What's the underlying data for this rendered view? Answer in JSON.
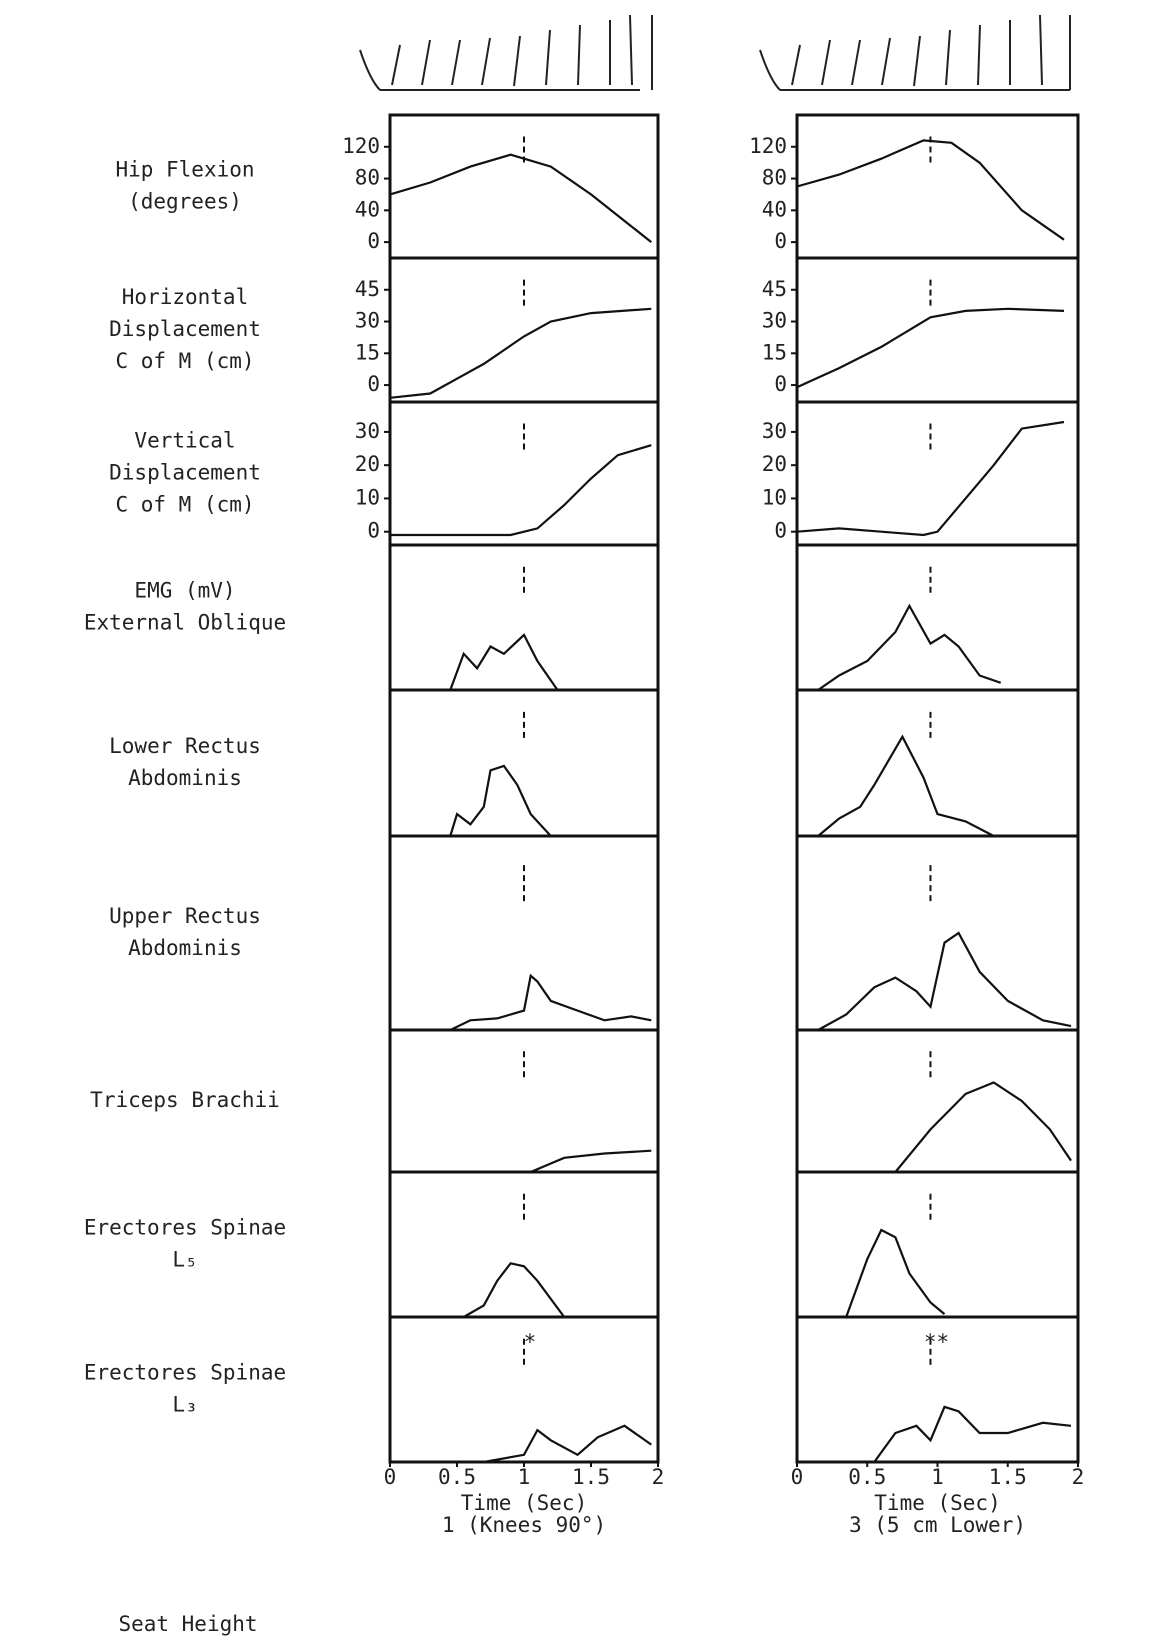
{
  "row_labels": [
    [
      "Hip Flexion",
      "(degrees)"
    ],
    [
      "Horizontal",
      "Displacement",
      "C of M (cm)"
    ],
    [
      "Vertical",
      "Displacement",
      "C of M (cm)"
    ],
    [
      "EMG (mV)",
      "External Oblique"
    ],
    [
      "Lower Rectus",
      "Abdominis"
    ],
    [
      "Upper Rectus",
      "Abdominis"
    ],
    [
      "Triceps Brachii"
    ],
    [
      "Erectores Spinae",
      "L₅"
    ],
    [
      "Erectores Spinae",
      "L₃"
    ]
  ],
  "seat_label": "Seat Height",
  "chart_data": [
    {
      "type": "line",
      "xlabel": "Time (Sec)",
      "caption": "1 (Knees 90°)",
      "xlim": [
        0,
        2
      ],
      "xticks": [
        0,
        0.5,
        1,
        1.5,
        2
      ],
      "event_x": 1,
      "panels": [
        {
          "ylim": [
            -20,
            160
          ],
          "yticks": [
            0,
            40,
            80,
            120
          ],
          "x": [
            0,
            0.3,
            0.6,
            0.9,
            1.2,
            1.5,
            1.8,
            1.95
          ],
          "values": [
            60,
            75,
            95,
            110,
            95,
            60,
            20,
            0
          ]
        },
        {
          "ylim": [
            -8,
            60
          ],
          "yticks": [
            0,
            15,
            30,
            45
          ],
          "x": [
            0,
            0.3,
            0.5,
            0.7,
            1.0,
            1.2,
            1.5,
            1.95
          ],
          "values": [
            -6,
            -4,
            3,
            10,
            23,
            30,
            34,
            36
          ]
        },
        {
          "ylim": [
            -4,
            39
          ],
          "yticks": [
            0,
            10,
            20,
            30
          ],
          "x": [
            0,
            0.5,
            0.9,
            1.1,
            1.3,
            1.5,
            1.7,
            1.95
          ],
          "values": [
            -1,
            -1,
            -1,
            1,
            8,
            16,
            23,
            26
          ]
        },
        {
          "ylim": [
            0,
            1
          ],
          "x": [
            0.45,
            0.55,
            0.65,
            0.75,
            0.85,
            1.0,
            1.1,
            1.25
          ],
          "values": [
            0,
            0.25,
            0.15,
            0.3,
            0.25,
            0.38,
            0.2,
            0
          ]
        },
        {
          "ylim": [
            0,
            1
          ],
          "x": [
            0.45,
            0.5,
            0.6,
            0.7,
            0.75,
            0.85,
            0.95,
            1.05,
            1.2
          ],
          "values": [
            0,
            0.15,
            0.08,
            0.2,
            0.45,
            0.48,
            0.35,
            0.15,
            0
          ]
        },
        {
          "ylim": [
            0,
            1
          ],
          "x": [
            0.45,
            0.6,
            0.8,
            1.0,
            1.05,
            1.1,
            1.2,
            1.4,
            1.6,
            1.8,
            1.95
          ],
          "values": [
            0,
            0.05,
            0.06,
            0.1,
            0.28,
            0.25,
            0.15,
            0.1,
            0.05,
            0.07,
            0.05
          ]
        },
        {
          "ylim": [
            0,
            1
          ],
          "x": [
            1.05,
            1.3,
            1.6,
            1.95
          ],
          "values": [
            0,
            0.1,
            0.13,
            0.15
          ]
        },
        {
          "ylim": [
            0,
            1
          ],
          "x": [
            0.55,
            0.7,
            0.8,
            0.9,
            1.0,
            1.1,
            1.3
          ],
          "values": [
            0,
            0.08,
            0.25,
            0.37,
            0.35,
            0.25,
            0
          ]
        },
        {
          "ylim": [
            0,
            1
          ],
          "annotation": "*",
          "x": [
            0.7,
            1.0,
            1.1,
            1.2,
            1.4,
            1.55,
            1.75,
            1.95
          ],
          "values": [
            0,
            0.05,
            0.22,
            0.15,
            0.05,
            0.17,
            0.25,
            0.12
          ]
        }
      ]
    },
    {
      "type": "line",
      "xlabel": "Time (Sec)",
      "caption": "3 (5 cm Lower)",
      "xlim": [
        0,
        2
      ],
      "xticks": [
        0,
        0.5,
        1,
        1.5,
        2
      ],
      "event_x": 0.95,
      "panels": [
        {
          "ylim": [
            -20,
            160
          ],
          "yticks": [
            0,
            40,
            80,
            120
          ],
          "x": [
            0,
            0.3,
            0.6,
            0.9,
            1.1,
            1.3,
            1.6,
            1.9
          ],
          "values": [
            70,
            85,
            105,
            128,
            125,
            100,
            40,
            3
          ]
        },
        {
          "ylim": [
            -8,
            60
          ],
          "yticks": [
            0,
            15,
            30,
            45
          ],
          "x": [
            0,
            0.3,
            0.6,
            0.95,
            1.2,
            1.5,
            1.9
          ],
          "values": [
            -1,
            8,
            18,
            32,
            35,
            36,
            35
          ]
        },
        {
          "ylim": [
            -4,
            39
          ],
          "yticks": [
            0,
            10,
            20,
            30
          ],
          "x": [
            0,
            0.3,
            0.6,
            0.9,
            1.0,
            1.2,
            1.4,
            1.6,
            1.9
          ],
          "values": [
            0,
            1,
            0,
            -1,
            0,
            10,
            20,
            31,
            33
          ]
        },
        {
          "ylim": [
            0,
            1
          ],
          "x": [
            0.15,
            0.3,
            0.5,
            0.7,
            0.8,
            0.95,
            1.05,
            1.15,
            1.3,
            1.45
          ],
          "values": [
            0,
            0.1,
            0.2,
            0.4,
            0.58,
            0.32,
            0.38,
            0.3,
            0.1,
            0.05
          ]
        },
        {
          "ylim": [
            0,
            1
          ],
          "x": [
            0.15,
            0.3,
            0.45,
            0.55,
            0.75,
            0.9,
            1.0,
            1.2,
            1.4
          ],
          "values": [
            0,
            0.12,
            0.2,
            0.35,
            0.68,
            0.4,
            0.15,
            0.1,
            0
          ]
        },
        {
          "ylim": [
            0,
            1
          ],
          "x": [
            0.15,
            0.35,
            0.55,
            0.7,
            0.85,
            0.95,
            1.05,
            1.15,
            1.3,
            1.5,
            1.75,
            1.95
          ],
          "values": [
            0,
            0.08,
            0.22,
            0.27,
            0.2,
            0.12,
            0.45,
            0.5,
            0.3,
            0.15,
            0.05,
            0.02
          ]
        },
        {
          "ylim": [
            0,
            1
          ],
          "x": [
            0.7,
            0.95,
            1.2,
            1.4,
            1.6,
            1.8,
            1.95
          ],
          "values": [
            0,
            0.3,
            0.55,
            0.63,
            0.5,
            0.3,
            0.08
          ]
        },
        {
          "ylim": [
            0,
            1
          ],
          "x": [
            0.35,
            0.5,
            0.6,
            0.7,
            0.8,
            0.95,
            1.05
          ],
          "values": [
            0,
            0.4,
            0.6,
            0.55,
            0.3,
            0.1,
            0.02
          ]
        },
        {
          "ylim": [
            0,
            1
          ],
          "annotation": "**",
          "x": [
            0.55,
            0.7,
            0.85,
            0.95,
            1.05,
            1.15,
            1.3,
            1.5,
            1.75,
            1.95
          ],
          "values": [
            0,
            0.2,
            0.25,
            0.15,
            0.38,
            0.35,
            0.2,
            0.2,
            0.27,
            0.25
          ]
        }
      ]
    }
  ]
}
